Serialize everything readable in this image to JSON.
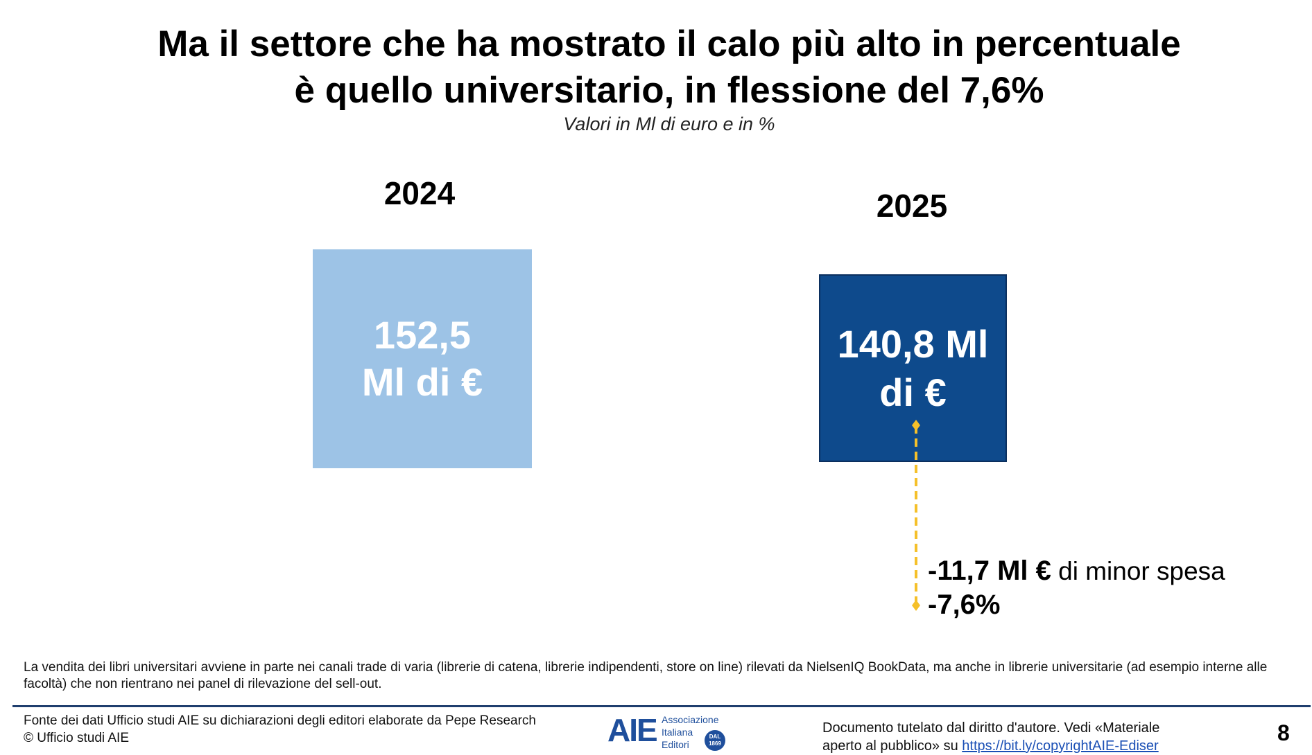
{
  "title": {
    "line1": "Ma il settore che ha mostrato il calo più alto in percentuale",
    "line2": "è quello universitario, in flessione del 7,6%"
  },
  "subtitle": "Valori in Ml di euro e in %",
  "years": [
    {
      "label": "2024",
      "value_line1": "152,5",
      "value_line2": "Ml di €",
      "color": "#9dc3e6"
    },
    {
      "label": "2025",
      "value_line1": "140,8 Ml",
      "value_line2": "di €",
      "color": "#0e4a8c"
    }
  ],
  "difference": {
    "amount": "-11,7 Ml €",
    "amount_suffix": "di minor spesa",
    "percent": "-7,6%",
    "arrow_color": "#f5c02a"
  },
  "note": "La vendita dei libri universitari avviene in parte nei canali trade di varia (librerie di catena, librerie indipendenti, store on line) rilevati da NielsenIQ BookData, ma anche in librerie universitarie (ad esempio interne alle facoltà) che non rientrano nei panel di rilevazione del sell-out.",
  "footer": {
    "source_line1": "Fonte dei dati Ufficio studi AIE su dichiarazioni degli editori elaborate da Pepe Research",
    "source_line2": "© Ufficio studi AIE",
    "logo": {
      "mark": "AIE",
      "word1": "Associazione",
      "word2": "Italiana",
      "word3": "Editori",
      "seal_line1": "DAL",
      "seal_line2": "1869"
    },
    "copyright_line1": "Documento tutelato dal diritto d'autore. Vedi «Materiale",
    "copyright_line2_prefix": "aperto al pubblico» su",
    "copyright_link": "https://bit.ly/copyrightAIE-Ediser",
    "page_number": "8"
  }
}
